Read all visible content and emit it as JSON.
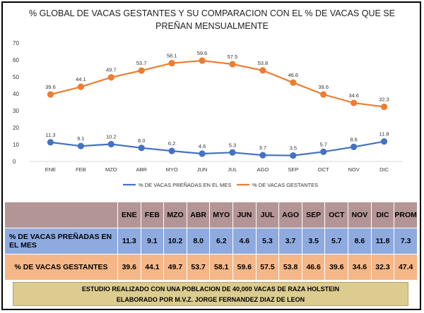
{
  "chart_data": {
    "type": "line",
    "title_line1": "% GLOBAL DE VACAS GESTANTES Y SU COMPARACION CON EL % DE VACAS QUE SE",
    "title_line2": "PREÑAN MENSUALMENTE",
    "categories": [
      "ENE",
      "FEB",
      "MZO",
      "ABR",
      "MYO",
      "JUN",
      "JUL",
      "AGO",
      "SEP",
      "OCT",
      "NOV",
      "DIC"
    ],
    "ylim": [
      0,
      70
    ],
    "yticks": [
      0,
      10,
      20,
      30,
      40,
      50,
      60,
      70
    ],
    "grid": false,
    "legend_position": "bottom",
    "series": [
      {
        "name": "% DE VACAS PREÑADAS EN EL MES",
        "color": "#4472c4",
        "values": [
          11.3,
          9.1,
          10.2,
          8.0,
          6.2,
          4.6,
          5.3,
          3.7,
          3.5,
          5.7,
          8.6,
          11.8
        ]
      },
      {
        "name": "% DE VACAS GESTANTES",
        "color": "#ed7d31",
        "values": [
          39.6,
          44.1,
          49.7,
          53.7,
          58.1,
          59.6,
          57.5,
          53.8,
          46.6,
          39.6,
          34.6,
          32.3
        ]
      }
    ]
  },
  "table": {
    "header": [
      "",
      "ENE",
      "FEB",
      "MZO",
      "ABR",
      "MYO",
      "JUN",
      "JUL",
      "AGO",
      "SEP",
      "OCT",
      "NOV",
      "DIC",
      "PROM"
    ],
    "rows": [
      {
        "label": "% DE VACAS PREÑADAS EN EL MES",
        "cells": [
          "11.3",
          "9.1",
          "10.2",
          "8.0",
          "6.2",
          "4.6",
          "5.3",
          "3.7",
          "3.5",
          "5.7",
          "8.6",
          "11.8",
          "7.3"
        ]
      },
      {
        "label": "% DE VACAS GESTANTES",
        "cells": [
          "39.6",
          "44.1",
          "49.7",
          "53.7",
          "58.1",
          "59.6",
          "57.5",
          "53.8",
          "46.6",
          "39.6",
          "34.6",
          "32.3",
          "47.4"
        ]
      }
    ]
  },
  "note": {
    "line1": "ESTUDIO REALIZADO CON UNA POBLACION DE 40,000 VACAS DE RAZA HOLSTEIN",
    "line2": "ELABORADO POR M.V.Z. JORGE FERNANDEZ DIAZ DE LEON"
  }
}
